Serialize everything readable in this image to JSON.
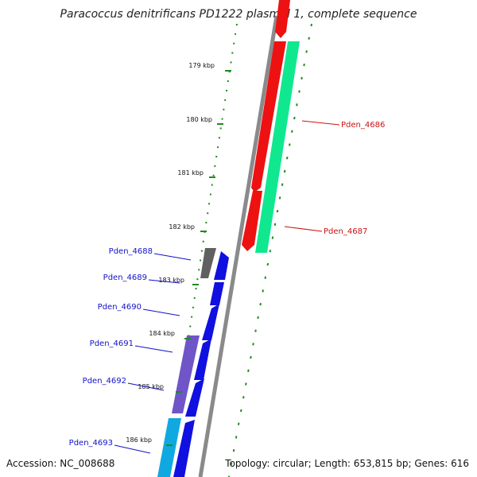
{
  "title": "Paracoccus denitrificans PD1222 plasmid 1, complete sequence",
  "footer": {
    "accession": "Accession: NC_008688",
    "summary": "Topology: circular; Length: 653,815 bp; Genes: 616"
  },
  "colors": {
    "backbone": "#8a8a8a",
    "tick": "#1f8a1f",
    "left_label": "#1212c8",
    "right_label": "#cc1111"
  },
  "ticks": [
    "179 kbp",
    "180 kbp",
    "181 kbp",
    "182 kbp",
    "183 kbp",
    "184 kbp",
    "185 kbp",
    "186 kbp"
  ],
  "genes_left": [
    {
      "label": "Pden_4688",
      "color": "#606060"
    },
    {
      "label": "Pden_4689",
      "color": "#1010e0"
    },
    {
      "label": "Pden_4690",
      "color": "#1010e0"
    },
    {
      "label": "Pden_4691",
      "color": "#7055c8"
    },
    {
      "label": "Pden_4692",
      "color": "#1010e0"
    },
    {
      "label": "Pden_4693",
      "color": "#10a8e0"
    }
  ],
  "genes_right": [
    {
      "label": "Pden_4686",
      "color": "#ee1111"
    },
    {
      "label": "Pden_4687",
      "color": "#10e890"
    }
  ]
}
